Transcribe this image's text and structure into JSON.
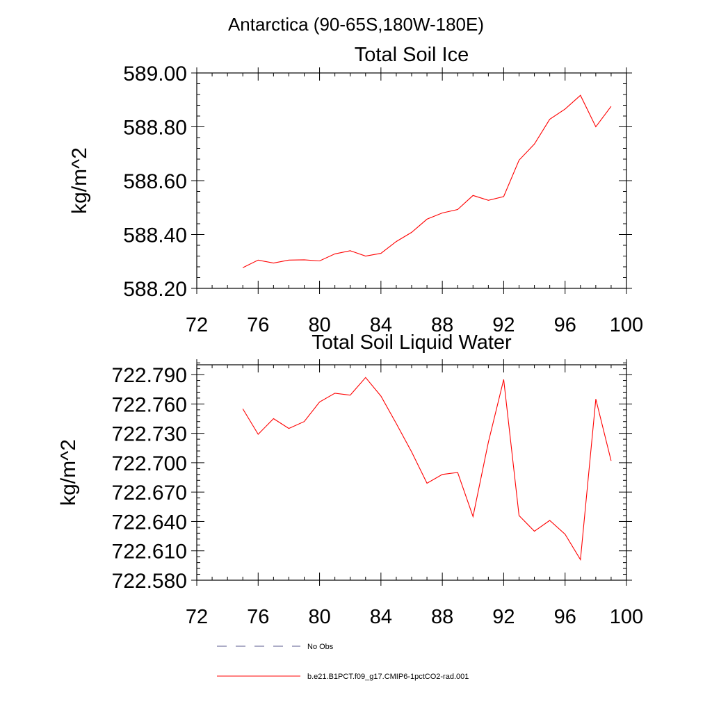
{
  "figure": {
    "region_title": "Antarctica (90-65S,180W-180E)"
  },
  "chart_data": [
    {
      "type": "line",
      "title": "Total Soil Ice",
      "ylabel": "kg/m^2",
      "xlabel": "",
      "xlim": [
        72,
        100
      ],
      "ylim": [
        588.2,
        589.0
      ],
      "xticks": [
        72,
        76,
        80,
        84,
        88,
        92,
        96,
        100
      ],
      "xtick_labels": [
        "72",
        "76",
        "80",
        "84",
        "88",
        "92",
        "96",
        "100"
      ],
      "yticks": [
        588.2,
        588.4,
        588.6,
        588.8,
        589.0
      ],
      "ytick_labels": [
        "588.20",
        "588.40",
        "588.60",
        "588.80",
        "589.00"
      ],
      "grid": false,
      "series": [
        {
          "name": "b.e21.B1PCT.f09_g17.CMIP6-1pctCO2-rad.001",
          "color": "#ff0000",
          "x": [
            75,
            76,
            77,
            78,
            79,
            80,
            81,
            82,
            83,
            84,
            85,
            86,
            87,
            88,
            89,
            90,
            91,
            92,
            93,
            94,
            95,
            96,
            97,
            98,
            99
          ],
          "y": [
            588.277,
            588.305,
            588.294,
            588.305,
            588.306,
            588.302,
            588.328,
            588.34,
            588.32,
            588.33,
            588.374,
            588.408,
            588.457,
            588.48,
            588.493,
            588.545,
            588.527,
            588.541,
            588.676,
            588.736,
            588.828,
            588.866,
            588.917,
            588.8,
            588.876
          ]
        }
      ]
    },
    {
      "type": "line",
      "title": "Total Soil Liquid Water",
      "ylabel": "kg/m^2",
      "xlabel": "",
      "xlim": [
        72,
        100
      ],
      "ylim": [
        722.58,
        722.8
      ],
      "xticks": [
        72,
        76,
        80,
        84,
        88,
        92,
        96,
        100
      ],
      "xtick_labels": [
        "72",
        "76",
        "80",
        "84",
        "88",
        "92",
        "96",
        "100"
      ],
      "yticks": [
        722.58,
        722.61,
        722.64,
        722.67,
        722.7,
        722.73,
        722.76,
        722.79
      ],
      "ytick_labels": [
        "722.580",
        "722.610",
        "722.640",
        "722.670",
        "722.700",
        "722.730",
        "722.760",
        "722.790"
      ],
      "grid": false,
      "series": [
        {
          "name": "b.e21.B1PCT.f09_g17.CMIP6-1pctCO2-rad.001",
          "color": "#ff0000",
          "x": [
            75,
            76,
            77,
            78,
            79,
            80,
            81,
            82,
            83,
            84,
            85,
            86,
            87,
            88,
            89,
            90,
            91,
            92,
            93,
            94,
            95,
            96,
            97,
            98,
            99
          ],
          "y": [
            722.755,
            722.729,
            722.745,
            722.735,
            722.742,
            722.762,
            722.771,
            722.769,
            722.787,
            722.768,
            722.74,
            722.711,
            722.679,
            722.688,
            722.69,
            722.645,
            722.721,
            722.785,
            722.646,
            722.63,
            722.641,
            722.627,
            722.601,
            722.765,
            722.702
          ]
        }
      ]
    }
  ],
  "legend": {
    "placement": "bottom",
    "items": [
      {
        "label": "No Obs",
        "style": "dashed",
        "color": "#5a5a8c"
      },
      {
        "label": "b.e21.B1PCT.f09_g17.CMIP6-1pctCO2-rad.001",
        "style": "solid",
        "color": "#ff0000"
      }
    ]
  }
}
